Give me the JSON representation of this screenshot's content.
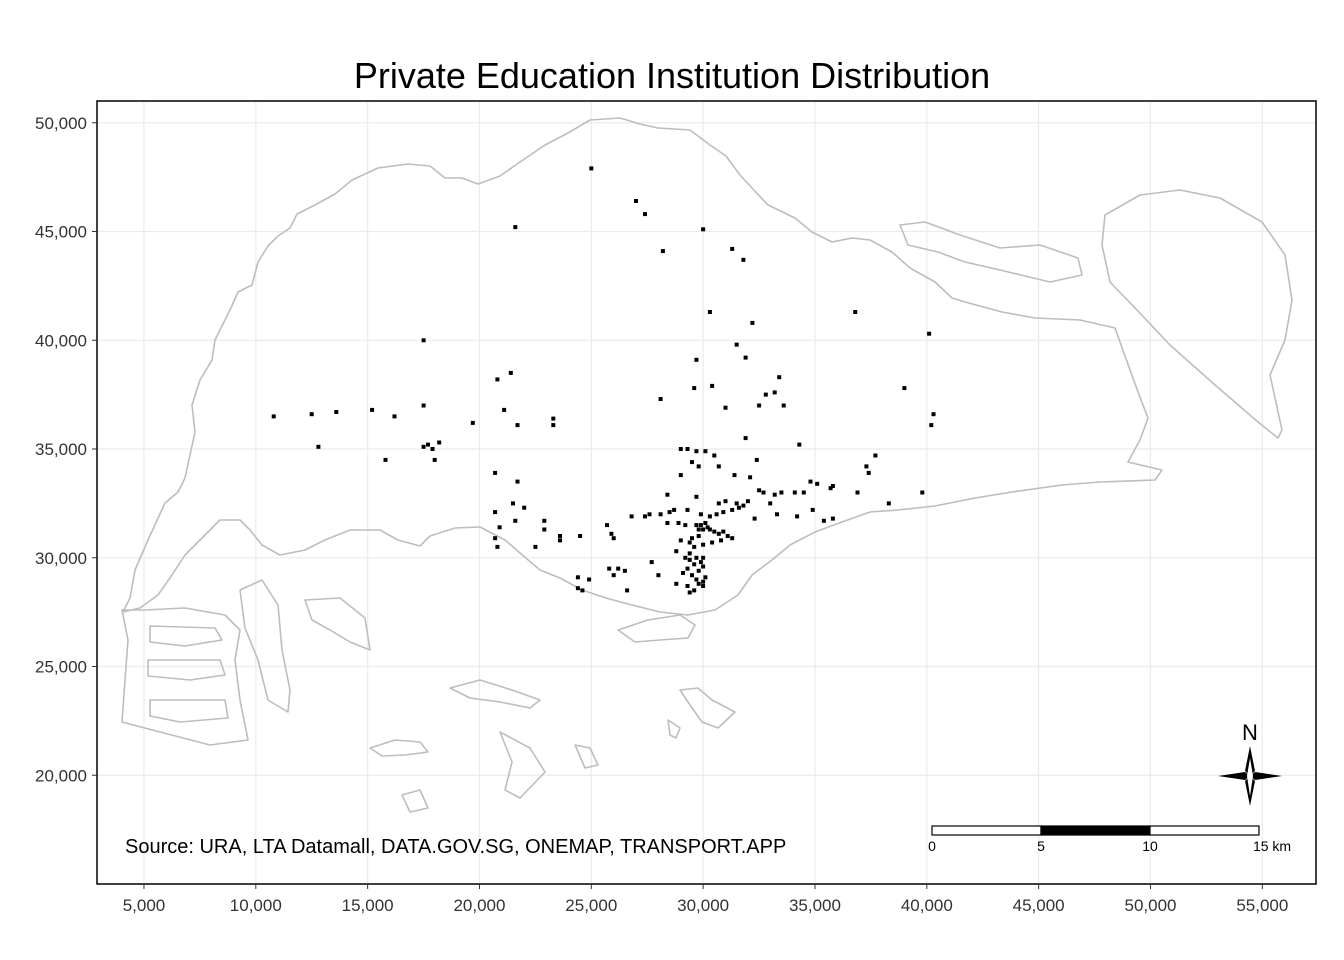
{
  "chart_data": {
    "type": "scatter",
    "title": "Private Education Institution Distribution",
    "caption": "Source: URA, LTA Datamall, DATA.GOV.SG, ONEMAP, TRANSPORT.APP",
    "xlabel": "",
    "ylabel": "",
    "xlim": [
      2900,
      57400
    ],
    "ylim": [
      15000,
      51000
    ],
    "x_ticks": [
      5000,
      10000,
      15000,
      20000,
      25000,
      30000,
      35000,
      40000,
      45000,
      50000,
      55000
    ],
    "x_tick_labels": [
      "5,000",
      "10,000",
      "15,000",
      "20,000",
      "25,000",
      "30,000",
      "35,000",
      "40,000",
      "45,000",
      "50,000",
      "55,000"
    ],
    "y_ticks": [
      20000,
      25000,
      30000,
      35000,
      40000,
      45000,
      50000
    ],
    "y_tick_labels": [
      "20,000",
      "25,000",
      "30,000",
      "35,000",
      "40,000",
      "45,000",
      "50,000"
    ],
    "grid": true,
    "colors": {
      "coastline": "#bdbdbd",
      "points": "#000000",
      "grid": "#ebebeb"
    },
    "scale_bar": {
      "labels": [
        "0",
        "5",
        "10",
        "15 km"
      ],
      "position": "bottom-right"
    },
    "north_arrow": {
      "label": "N",
      "position": "bottom-right"
    },
    "series": [
      {
        "points": [
          [
            25000,
            47900
          ],
          [
            27000,
            46400
          ],
          [
            27400,
            45800
          ],
          [
            21600,
            45200
          ],
          [
            30000,
            45100
          ],
          [
            28200,
            44100
          ],
          [
            31300,
            44200
          ],
          [
            31800,
            43700
          ],
          [
            36800,
            41300
          ],
          [
            30300,
            41300
          ],
          [
            32200,
            40800
          ],
          [
            40100,
            40300
          ],
          [
            17500,
            40000
          ],
          [
            31500,
            39800
          ],
          [
            31900,
            39200
          ],
          [
            29700,
            39100
          ],
          [
            21400,
            38500
          ],
          [
            20800,
            38200
          ],
          [
            33400,
            38300
          ],
          [
            30400,
            37900
          ],
          [
            29600,
            37800
          ],
          [
            33200,
            37600
          ],
          [
            32800,
            37500
          ],
          [
            39000,
            37800
          ],
          [
            28100,
            37300
          ],
          [
            33600,
            37000
          ],
          [
            32500,
            37000
          ],
          [
            31000,
            36900
          ],
          [
            21100,
            36800
          ],
          [
            17500,
            37000
          ],
          [
            15200,
            36800
          ],
          [
            13600,
            36700
          ],
          [
            12500,
            36600
          ],
          [
            10800,
            36500
          ],
          [
            16200,
            36500
          ],
          [
            23300,
            36400
          ],
          [
            19700,
            36200
          ],
          [
            21700,
            36100
          ],
          [
            23300,
            36100
          ],
          [
            40200,
            36100
          ],
          [
            40300,
            36600
          ],
          [
            31900,
            35500
          ],
          [
            34300,
            35200
          ],
          [
            29000,
            35000
          ],
          [
            29300,
            35000
          ],
          [
            29700,
            34900
          ],
          [
            30100,
            34900
          ],
          [
            30500,
            34700
          ],
          [
            17700,
            35200
          ],
          [
            17500,
            35100
          ],
          [
            18200,
            35300
          ],
          [
            17900,
            35000
          ],
          [
            12800,
            35100
          ],
          [
            15800,
            34500
          ],
          [
            18000,
            34500
          ],
          [
            32400,
            34500
          ],
          [
            29500,
            34400
          ],
          [
            29800,
            34200
          ],
          [
            30700,
            34200
          ],
          [
            37700,
            34700
          ],
          [
            37300,
            34200
          ],
          [
            37400,
            33900
          ],
          [
            20700,
            33900
          ],
          [
            29000,
            33800
          ],
          [
            31400,
            33800
          ],
          [
            34800,
            33500
          ],
          [
            35100,
            33400
          ],
          [
            32100,
            33700
          ],
          [
            21700,
            33500
          ],
          [
            34500,
            33000
          ],
          [
            34100,
            33000
          ],
          [
            33500,
            33000
          ],
          [
            35700,
            33200
          ],
          [
            35800,
            33300
          ],
          [
            32500,
            33100
          ],
          [
            32700,
            33000
          ],
          [
            33200,
            32900
          ],
          [
            36900,
            33000
          ],
          [
            39800,
            33000
          ],
          [
            28400,
            32900
          ],
          [
            29700,
            32800
          ],
          [
            30700,
            32500
          ],
          [
            31000,
            32600
          ],
          [
            31500,
            32500
          ],
          [
            32000,
            32600
          ],
          [
            33000,
            32500
          ],
          [
            21500,
            32500
          ],
          [
            22000,
            32300
          ],
          [
            38300,
            32500
          ],
          [
            34900,
            32200
          ],
          [
            33300,
            32000
          ],
          [
            34200,
            31900
          ],
          [
            35400,
            31700
          ],
          [
            35800,
            31800
          ],
          [
            32300,
            31800
          ],
          [
            29300,
            32200
          ],
          [
            28500,
            32100
          ],
          [
            28700,
            32200
          ],
          [
            28100,
            32000
          ],
          [
            27600,
            32000
          ],
          [
            27400,
            31900
          ],
          [
            26800,
            31900
          ],
          [
            29900,
            32000
          ],
          [
            30300,
            31900
          ],
          [
            30600,
            32000
          ],
          [
            30900,
            32100
          ],
          [
            31300,
            32200
          ],
          [
            31600,
            32300
          ],
          [
            31800,
            32400
          ],
          [
            20700,
            32100
          ],
          [
            21600,
            31700
          ],
          [
            22900,
            31700
          ],
          [
            25700,
            31500
          ],
          [
            28400,
            31600
          ],
          [
            28900,
            31600
          ],
          [
            29200,
            31500
          ],
          [
            29700,
            31500
          ],
          [
            29900,
            31500
          ],
          [
            30100,
            31600
          ],
          [
            30200,
            31400
          ],
          [
            30000,
            31300
          ],
          [
            29800,
            31300
          ],
          [
            30300,
            31300
          ],
          [
            30500,
            31200
          ],
          [
            30700,
            31100
          ],
          [
            30900,
            31200
          ],
          [
            31100,
            31000
          ],
          [
            31300,
            30900
          ],
          [
            30800,
            30800
          ],
          [
            29800,
            31000
          ],
          [
            29500,
            30900
          ],
          [
            29400,
            30700
          ],
          [
            29000,
            30800
          ],
          [
            29600,
            30500
          ],
          [
            30000,
            30600
          ],
          [
            30400,
            30700
          ],
          [
            20900,
            31400
          ],
          [
            22900,
            31300
          ],
          [
            23600,
            31000
          ],
          [
            23600,
            30800
          ],
          [
            24500,
            31000
          ],
          [
            26000,
            30900
          ],
          [
            25900,
            31100
          ],
          [
            20700,
            30900
          ],
          [
            20800,
            30500
          ],
          [
            22500,
            30500
          ],
          [
            28800,
            30300
          ],
          [
            29400,
            30200
          ],
          [
            29700,
            30000
          ],
          [
            30000,
            30000
          ],
          [
            29200,
            30000
          ],
          [
            29400,
            29900
          ],
          [
            29900,
            29800
          ],
          [
            29600,
            29700
          ],
          [
            29300,
            29500
          ],
          [
            29800,
            29400
          ],
          [
            30000,
            29600
          ],
          [
            29100,
            29300
          ],
          [
            29500,
            29200
          ],
          [
            30100,
            29100
          ],
          [
            29700,
            29000
          ],
          [
            30000,
            28900
          ],
          [
            28800,
            28800
          ],
          [
            29300,
            28700
          ],
          [
            29800,
            28800
          ],
          [
            29600,
            28500
          ],
          [
            29400,
            28400
          ],
          [
            27700,
            29800
          ],
          [
            25800,
            29500
          ],
          [
            26200,
            29500
          ],
          [
            26500,
            29400
          ],
          [
            24400,
            29100
          ],
          [
            24900,
            29000
          ],
          [
            24400,
            28600
          ],
          [
            24600,
            28500
          ],
          [
            26600,
            28500
          ],
          [
            26000,
            29200
          ],
          [
            28000,
            29200
          ],
          [
            30000,
            28700
          ]
        ]
      }
    ]
  }
}
